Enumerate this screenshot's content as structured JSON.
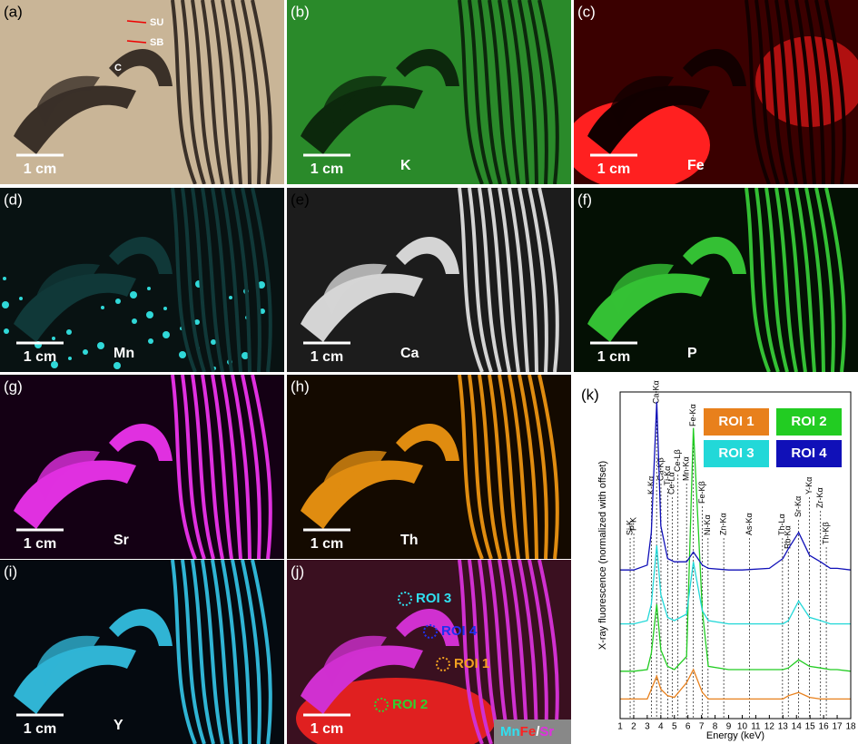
{
  "panels": [
    {
      "label": "(a)",
      "scale": "1 cm",
      "annotations": [
        "SU",
        "SB",
        "C"
      ]
    },
    {
      "label": "(b)",
      "scale": "1 cm",
      "element": "K"
    },
    {
      "label": "(c)",
      "scale": "1 cm",
      "element": "Fe"
    },
    {
      "label": "(d)",
      "scale": "1 cm",
      "element": "Mn"
    },
    {
      "label": "(e)",
      "scale": "1 cm",
      "element": "Ca"
    },
    {
      "label": "(f)",
      "scale": "1 cm",
      "element": "P"
    },
    {
      "label": "(g)",
      "scale": "1 cm",
      "element": "Sr"
    },
    {
      "label": "(h)",
      "scale": "1 cm",
      "element": "Th"
    },
    {
      "label": "(i)",
      "scale": "1 cm",
      "element": "Y"
    },
    {
      "label": "(j)",
      "scale": "1 cm",
      "rois": [
        "ROI 3",
        "ROI 4",
        "ROI 1",
        "ROI 2"
      ],
      "legend": [
        "Mn",
        "Fe",
        "/",
        "Sr"
      ]
    }
  ],
  "chart_data": {
    "type": "line",
    "panel_label": "(k)",
    "xlabel": "Energy (keV)",
    "ylabel": "X-ray fluorescence (normalized with offset)",
    "x": [
      1,
      2,
      3,
      3.3,
      3.7,
      4.0,
      4.5,
      5.0,
      5.9,
      6.4,
      7.06,
      7.5,
      9,
      10,
      12,
      13,
      13.4,
      14.16,
      14.96,
      15.77,
      16.5,
      17,
      18
    ],
    "xlim": [
      1,
      18
    ],
    "xticks": [
      1,
      2,
      3,
      4,
      5,
      6,
      7,
      8,
      9,
      10,
      11,
      12,
      13,
      14,
      15,
      16,
      17,
      18
    ],
    "ylim": [
      0,
      10
    ],
    "series": [
      {
        "name": "ROI 1",
        "color": "#e8801c",
        "values": [
          0.6,
          0.6,
          0.6,
          0.9,
          1.3,
          0.9,
          0.7,
          0.65,
          1.1,
          1.5,
          0.8,
          0.6,
          0.6,
          0.6,
          0.6,
          0.6,
          0.7,
          0.8,
          0.65,
          0.6,
          0.6,
          0.6,
          0.6
        ]
      },
      {
        "name": "ROI 2",
        "color": "#22cc22",
        "values": [
          1.45,
          1.45,
          1.5,
          2.0,
          3.5,
          2.1,
          1.6,
          1.5,
          1.9,
          8.9,
          3.3,
          1.6,
          1.5,
          1.5,
          1.5,
          1.5,
          1.55,
          1.8,
          1.6,
          1.55,
          1.5,
          1.5,
          1.45
        ]
      },
      {
        "name": "ROI 3",
        "color": "#22d8d8",
        "values": [
          2.9,
          2.9,
          3.0,
          3.5,
          5.3,
          3.8,
          3.1,
          3.0,
          3.2,
          4.8,
          3.3,
          3.0,
          2.9,
          2.9,
          2.9,
          2.9,
          3.0,
          3.6,
          3.1,
          3.0,
          2.9,
          2.9,
          2.9
        ]
      },
      {
        "name": "ROI 4",
        "color": "#1010b8",
        "values": [
          4.55,
          4.55,
          4.7,
          5.7,
          9.7,
          5.9,
          4.9,
          4.8,
          4.8,
          5.1,
          4.7,
          4.6,
          4.55,
          4.55,
          4.6,
          4.9,
          5.2,
          5.7,
          5.0,
          4.8,
          4.6,
          4.6,
          4.55
        ]
      }
    ],
    "peaks": [
      {
        "label": "Si-K",
        "energy": 1.74
      },
      {
        "label": "P-K",
        "energy": 2.01
      },
      {
        "label": "K-Kα",
        "energy": 3.31
      },
      {
        "label": "Ca-Kα",
        "energy": 3.69
      },
      {
        "label": "Ca-Kβ",
        "energy": 4.01
      },
      {
        "label": "Ti-Kα",
        "energy": 4.51
      },
      {
        "label": "Ce-Lα",
        "energy": 4.84
      },
      {
        "label": "Ce-Lβ",
        "energy": 5.26
      },
      {
        "label": "Mn-Kα",
        "energy": 5.9
      },
      {
        "label": "Fe-Kα",
        "energy": 6.4
      },
      {
        "label": "Fe-Kβ",
        "energy": 7.06
      },
      {
        "label": "Ni-Kα",
        "energy": 7.48
      },
      {
        "label": "Zn-Kα",
        "energy": 8.64
      },
      {
        "label": "As-Kα",
        "energy": 10.54
      },
      {
        "label": "Th-Lα",
        "energy": 12.97
      },
      {
        "label": "Rb-Kα",
        "energy": 13.4
      },
      {
        "label": "Sr-Kα",
        "energy": 14.16
      },
      {
        "label": "Y-Kα",
        "energy": 14.96
      },
      {
        "label": "Zr-Kα",
        "energy": 15.77
      },
      {
        "label": "Th-Kβ",
        "energy": 16.2
      }
    ]
  }
}
